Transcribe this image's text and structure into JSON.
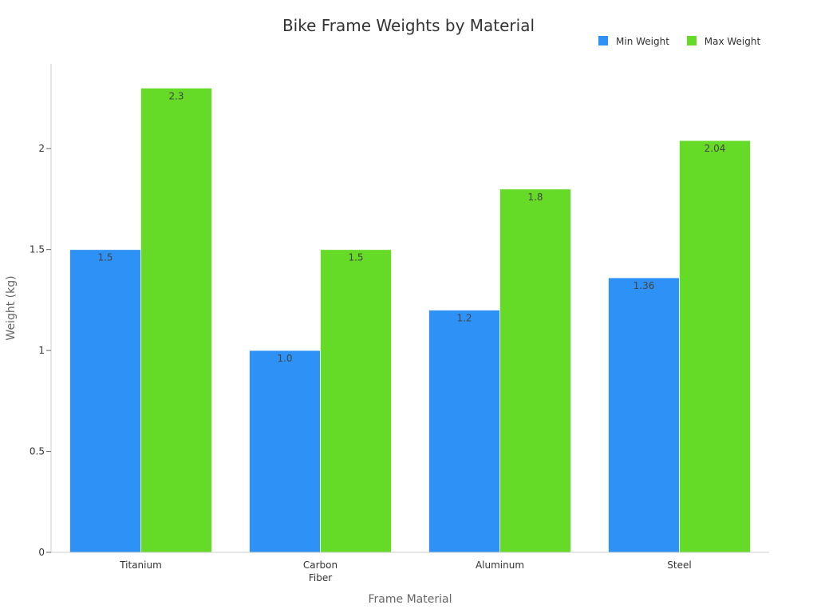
{
  "chart_data": {
    "type": "bar",
    "title": "Bike Frame Weights by Material",
    "xlabel": "Frame Material",
    "ylabel": "Weight (kg)",
    "categories": [
      "Titanium",
      "Carbon Fiber",
      "Aluminum",
      "Steel"
    ],
    "series": [
      {
        "name": "Min Weight",
        "color": "#2e91f5",
        "values": [
          1.5,
          1.0,
          1.2,
          1.36
        ],
        "labels": [
          "1.5",
          "1.0",
          "1.2",
          "1.36"
        ]
      },
      {
        "name": "Max Weight",
        "color": "#66db27",
        "values": [
          2.3,
          1.5,
          1.8,
          2.04
        ],
        "labels": [
          "2.3",
          "1.5",
          "1.8",
          "2.04"
        ]
      }
    ],
    "ylim": [
      0,
      2.42
    ],
    "yticks": [
      0,
      0.5,
      1,
      1.5,
      2
    ],
    "ytick_labels": [
      "0",
      "0.5",
      "1",
      "1.5",
      "2"
    ],
    "grid": false,
    "legend_position": "top-right"
  }
}
